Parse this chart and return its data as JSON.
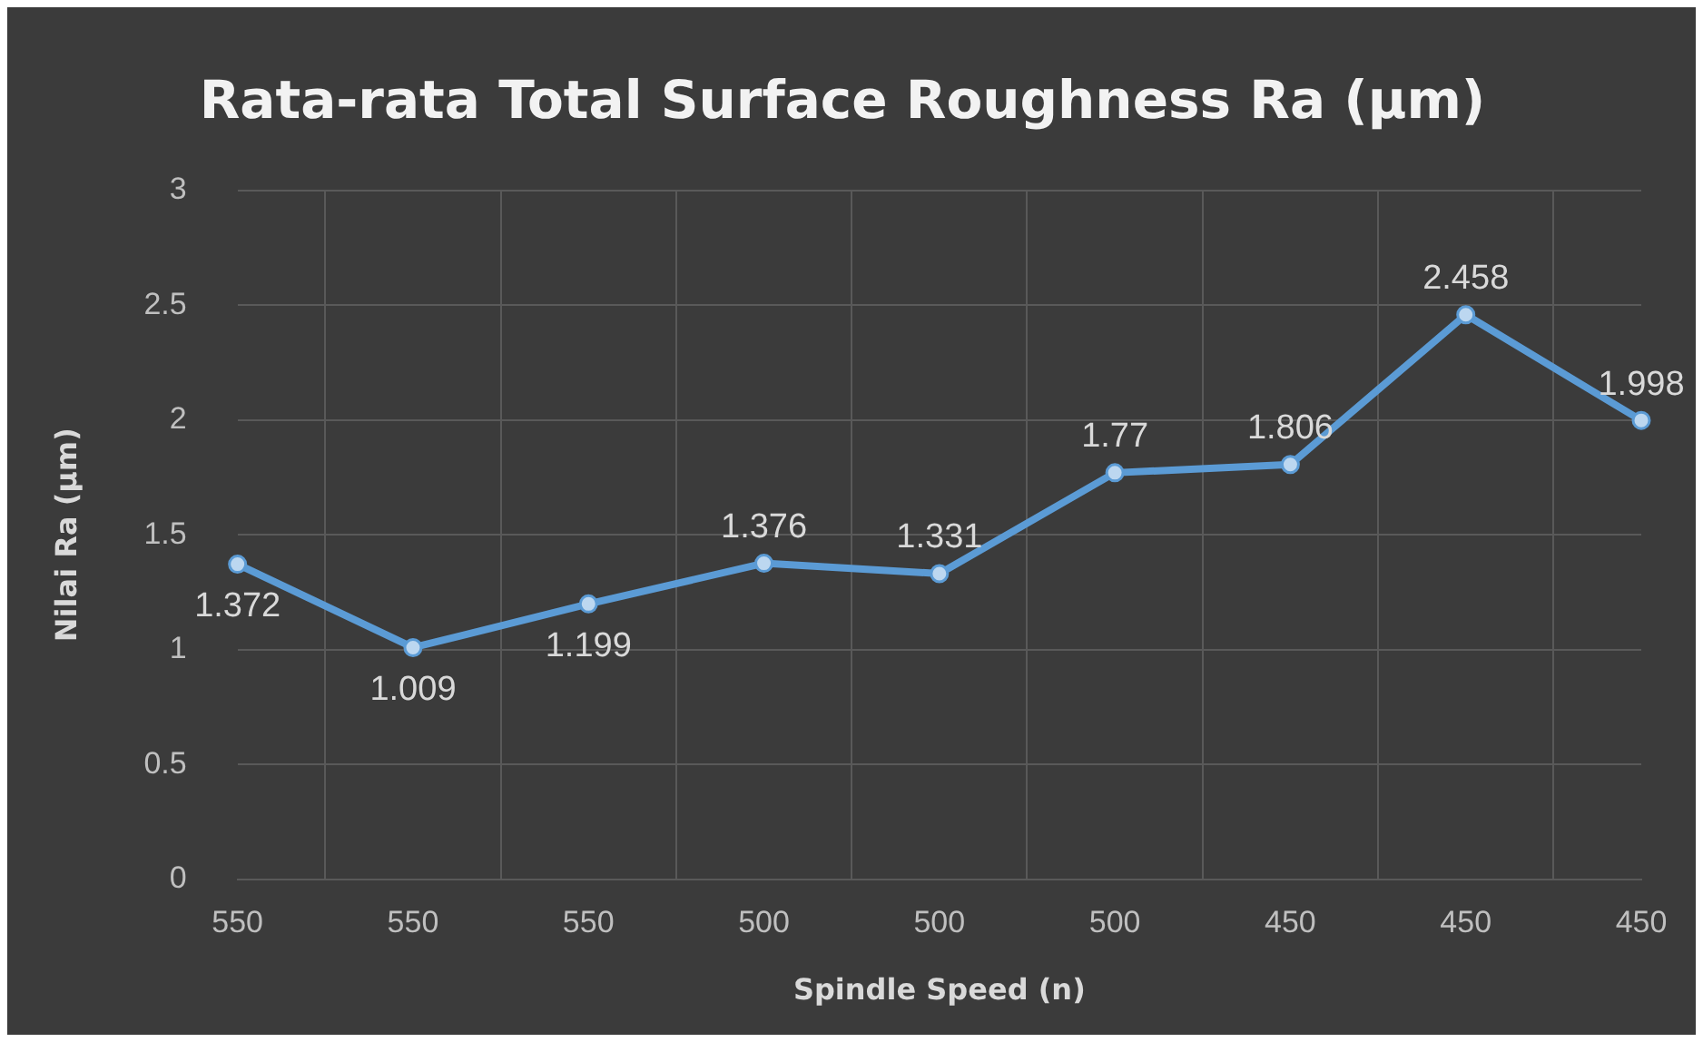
{
  "chart_data": {
    "type": "line",
    "title": "Rata-rata Total Surface Roughness Ra (µm)",
    "xlabel": "Spindle Speed (n)",
    "ylabel": "Nilai Ra (µm)",
    "categories": [
      "550",
      "550",
      "550",
      "500",
      "500",
      "500",
      "450",
      "450",
      "450"
    ],
    "series": [
      {
        "color": "#5b9bd5",
        "values": [
          1.372,
          1.009,
          1.199,
          1.376,
          1.331,
          1.77,
          1.806,
          2.458,
          1.998
        ]
      }
    ],
    "ylim": [
      0,
      3
    ],
    "yticks": [
      0,
      0.5,
      1,
      1.5,
      2,
      2.5,
      3
    ],
    "grid": true,
    "legend": false,
    "marker": "circle",
    "data_labels": true
  }
}
